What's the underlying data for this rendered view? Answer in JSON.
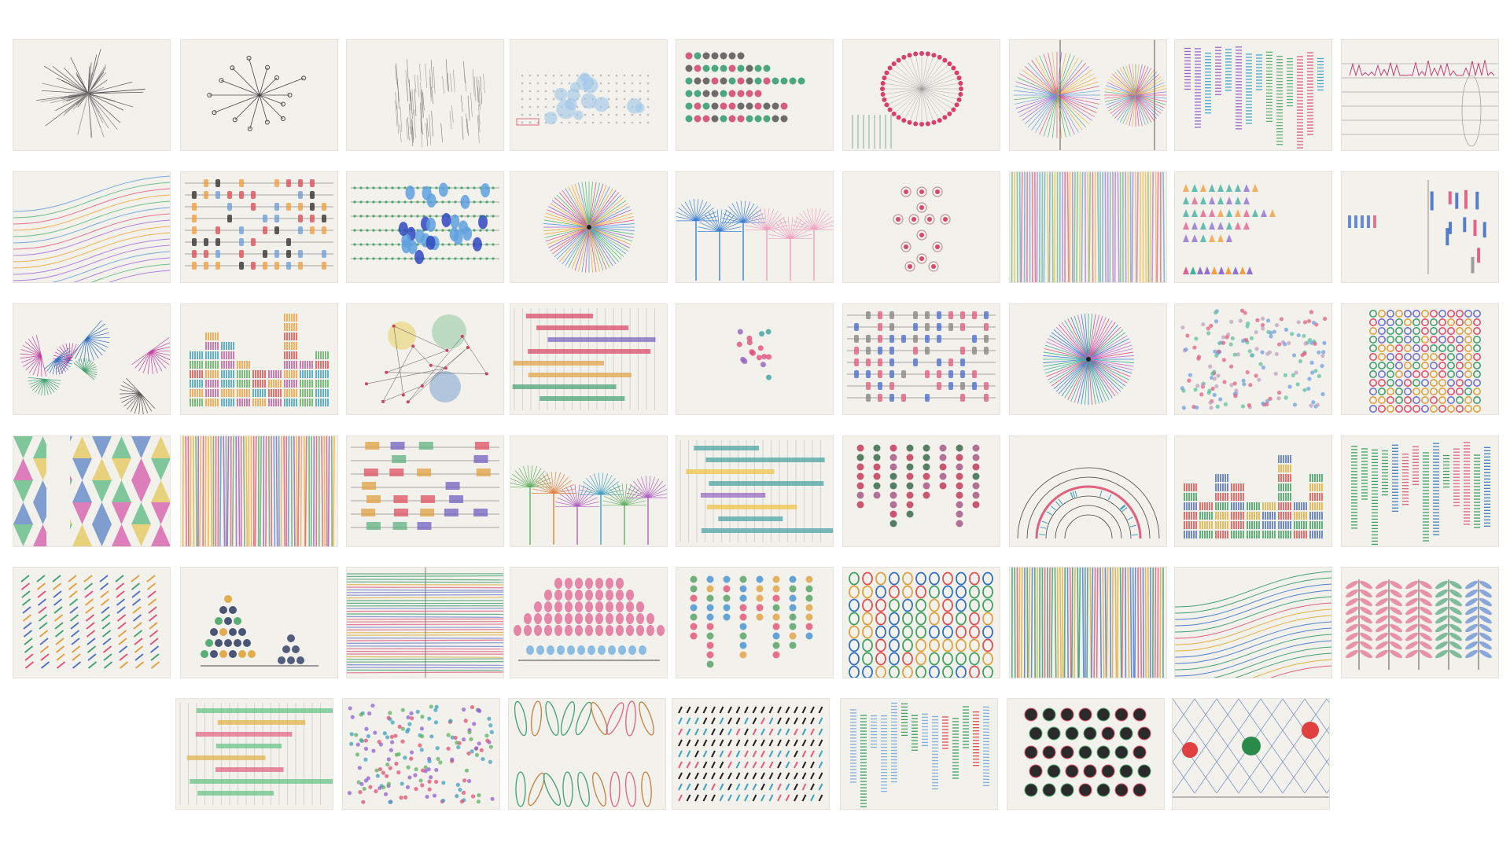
{
  "gallery": {
    "rows": [
      {
        "thumbnails": [
          {
            "motif": "starburst-arrows",
            "colors": [
              "#555555",
              "#888888"
            ]
          },
          {
            "motif": "hub-spokes",
            "colors": [
              "#444444"
            ]
          },
          {
            "motif": "grey-strokes",
            "colors": [
              "#777777",
              "#999999"
            ]
          },
          {
            "motif": "dot-grid-bubbles",
            "colors": [
              "#9fc6ea",
              "#e06b7a",
              "#bbbbbb"
            ]
          },
          {
            "motif": "dot-rows",
            "colors": [
              "#2e9a6b",
              "#d0436c",
              "#555555"
            ]
          },
          {
            "motif": "radial-ring",
            "colors": [
              "#d8406a",
              "#4f8f6a",
              "#999999"
            ]
          },
          {
            "motif": "fan",
            "colors": [
              "#e2557c",
              "#6aa0dc",
              "#f0b24a",
              "#55b07a",
              "#a36bd8"
            ]
          },
          {
            "motif": "vertical-bars",
            "colors": [
              "#e05c88",
              "#4aa6c8",
              "#f0c040",
              "#60b070",
              "#9a66cc"
            ]
          },
          {
            "motif": "wave-lines",
            "colors": [
              "#c03070",
              "#888888"
            ]
          }
        ]
      },
      {
        "thumbnails": [
          {
            "motif": "curves",
            "colors": [
              "#e9718f",
              "#7aa7de",
              "#f2b251",
              "#6cc08a",
              "#b07ee0"
            ]
          },
          {
            "motif": "dash-rows",
            "colors": [
              "#e0505a",
              "#333333",
              "#70a0d8",
              "#f0a040"
            ]
          },
          {
            "motif": "blue-blobs",
            "colors": [
              "#2f48c0",
              "#5ea0e0",
              "#44aa66"
            ]
          },
          {
            "motif": "radial",
            "colors": [
              "#e35a8a",
              "#5d97e2",
              "#f2aa3d",
              "#58bb7c",
              "#a15fd6"
            ]
          },
          {
            "motif": "flower-fans",
            "colors": [
              "#e04a90",
              "#3c80d0",
              "#f0a0c0",
              "#50a070"
            ]
          },
          {
            "motif": "dot-cross",
            "colors": [
              "#d84a6a",
              "#c09098"
            ]
          },
          {
            "motif": "vertical-stripes",
            "colors": [
              "#e9718f",
              "#6bb5d8",
              "#f2c15a",
              "#7cc38e",
              "#b38ae0"
            ]
          },
          {
            "motif": "triangles",
            "colors": [
              "#e06090",
              "#40b0a0",
              "#9070d0",
              "#f0a040"
            ]
          },
          {
            "motif": "sparse-bars",
            "colors": [
              "#3060c0",
              "#e04070",
              "#888888"
            ]
          }
        ]
      },
      {
        "thumbnails": [
          {
            "motif": "fan-cluster",
            "colors": [
              "#c040a0",
              "#3070c0",
              "#40a070",
              "#555555"
            ]
          },
          {
            "motif": "stacked-blocks",
            "colors": [
              "#e05050",
              "#f0a040",
              "#40a0c0",
              "#60b060",
              "#c060a0"
            ]
          },
          {
            "motif": "circles-network",
            "colors": [
              "#e8d060",
              "#8ec8a0",
              "#7aa0d0",
              "#d04060"
            ]
          },
          {
            "motif": "horizontal-bands",
            "colors": [
              "#d84060",
              "#40a070",
              "#7060c0",
              "#e0a040"
            ]
          },
          {
            "motif": "small-cluster",
            "colors": [
              "#e05080",
              "#40a0a0",
              "#9060c0"
            ]
          },
          {
            "motif": "dash-rows",
            "colors": [
              "#5070d0",
              "#e06080",
              "#888888"
            ]
          },
          {
            "motif": "radial",
            "colors": [
              "#e05080",
              "#4080d0",
              "#40b090",
              "#c070d0"
            ]
          },
          {
            "motif": "dot-field",
            "colors": [
              "#e06080",
              "#70a0e0",
              "#60c0a0",
              "#c0a0c0"
            ]
          },
          {
            "motif": "dot-grid",
            "colors": [
              "#e05070",
              "#40a070",
              "#7070d0",
              "#e0a040"
            ]
          }
        ]
      },
      {
        "thumbnails": [
          {
            "motif": "triangle-pattern",
            "colors": [
              "#d040a0",
              "#40b070",
              "#e0c040",
              "#4070c0"
            ]
          },
          {
            "motif": "vertical-stripes",
            "colors": [
              "#e06080",
              "#50a0d0",
              "#f0b040",
              "#60b070",
              "#a060d0"
            ]
          },
          {
            "motif": "block-rows",
            "colors": [
              "#e05060",
              "#60b080",
              "#e0a040",
              "#7060c0"
            ]
          },
          {
            "motif": "flower-fans",
            "colors": [
              "#e08040",
              "#40a0c0",
              "#b060c0",
              "#60b060"
            ]
          },
          {
            "motif": "horizontal-bands",
            "colors": [
              "#e05060",
              "#40a0a0",
              "#f0c040",
              "#9060c0"
            ]
          },
          {
            "motif": "dot-columns",
            "colors": [
              "#c03050",
              "#306040",
              "#a05080"
            ]
          },
          {
            "motif": "arcs",
            "colors": [
              "#444444",
              "#e06080",
              "#40a0c0"
            ]
          },
          {
            "motif": "stacked-blocks",
            "colors": [
              "#e05050",
              "#40a060",
              "#5070c0",
              "#e0b040"
            ]
          },
          {
            "motif": "vertical-bars",
            "colors": [
              "#40a060",
              "#e06080",
              "#4080c0"
            ]
          }
        ]
      },
      {
        "thumbnails": [
          {
            "motif": "diagonal-strokes",
            "colors": [
              "#e05080",
              "#40a070",
              "#5070c0",
              "#e0a040"
            ]
          },
          {
            "motif": "dot-pyramid",
            "colors": [
              "#2a3a60",
              "#e0a030",
              "#40a060"
            ]
          },
          {
            "motif": "horizontal-lines",
            "colors": [
              "#e06080",
              "#40a070",
              "#7080d0",
              "#e0b040"
            ]
          },
          {
            "motif": "dot-dome",
            "colors": [
              "#e06090",
              "#70b0e0",
              "#40a070"
            ]
          },
          {
            "motif": "dot-columns",
            "colors": [
              "#e05070",
              "#4090d0",
              "#e0a040",
              "#50a060"
            ]
          },
          {
            "motif": "ring-grid",
            "colors": [
              "#e05050",
              "#40a060",
              "#3070c0",
              "#e0a040"
            ]
          },
          {
            "motif": "vertical-stripes",
            "colors": [
              "#40a070",
              "#e06080",
              "#5080d0",
              "#e0b040"
            ]
          },
          {
            "motif": "curves",
            "colors": [
              "#e06080",
              "#40a070",
              "#5080d0",
              "#e0b040"
            ]
          },
          {
            "motif": "leaves",
            "colors": [
              "#40a070",
              "#e06080",
              "#5080d0"
            ]
          }
        ]
      },
      {
        "thumbnails": [
          {
            "motif": "horizontal-bands",
            "colors": [
              "#70a0d8",
              "#e0b040",
              "#60c080",
              "#e06080"
            ]
          },
          {
            "motif": "dot-field",
            "colors": [
              "#e05070",
              "#40a0c0",
              "#9060d0",
              "#60b060"
            ]
          },
          {
            "motif": "loops",
            "colors": [
              "#e06080",
              "#40a070",
              "#c08040"
            ]
          },
          {
            "motif": "dash-grid",
            "colors": [
              "#222222",
              "#40a0c0",
              "#e06080"
            ]
          },
          {
            "motif": "vertical-bars",
            "colors": [
              "#80b0e0",
              "#40a060",
              "#e05050"
            ]
          },
          {
            "motif": "black-dots",
            "colors": [
              "#1a1a1a",
              "#e04060",
              "#40a060"
            ]
          },
          {
            "motif": "lattice",
            "colors": [
              "#e04040",
              "#2a8a4a",
              "#7090c0"
            ]
          }
        ]
      }
    ]
  }
}
